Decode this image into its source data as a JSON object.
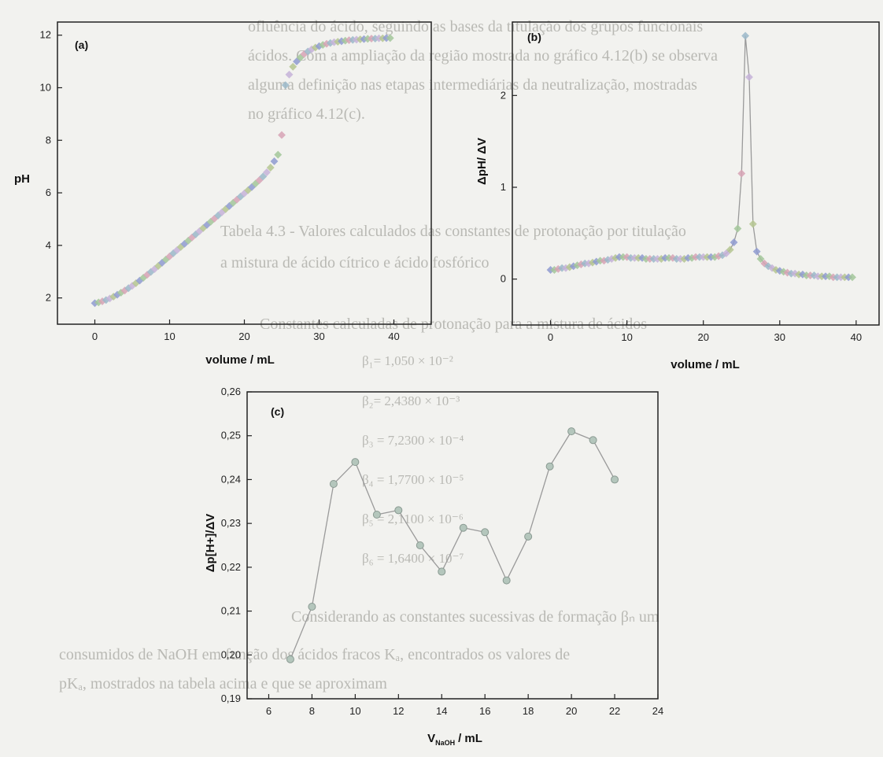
{
  "background_text": [
    "ofluência do ácido, seguindo as bases da titulação dos grupos funcionais",
    "ácidos. Com a ampliação da região mostrada no gráfico 4.12(b) se observa",
    "alguma definição nas etapas intermediárias da neutralização, mostradas",
    "no gráfico 4.12(c).",
    "Tabela 4.3 - Valores calculados das constantes de protonação por titulação",
    "a mistura de ácido cítrico e ácido fosfórico",
    "Constantes calculadas de protonação para a mistura de ácidos",
    "β₁= 1,050 × 10⁻²",
    "β₂= 2,4380 × 10⁻³",
    "β₃ = 7,2300 × 10⁻⁴",
    "β₄ = 1,7700 × 10⁻⁵",
    "β₅ = 2,1100 × 10⁻⁶",
    "β₆ = 1,6400 × 10⁻⁷",
    "Considerando as constantes sucessivas de formação βₙ um",
    "consumidos de NaOH em função dos ácidos fracos Kₐ, encontrados os valores de",
    "pKₐ, mostrados na tabela acima e que se aproximam"
  ],
  "chart_data": [
    {
      "id": "a",
      "type": "scatter",
      "panel_label": "(a)",
      "xlabel": "volume / mL",
      "ylabel": "pH",
      "xlim": [
        -5,
        45
      ],
      "ylim": [
        1,
        12.5
      ],
      "xticks": [
        "0",
        "10",
        "20",
        "30",
        "40"
      ],
      "yticks": [
        "2",
        "4",
        "6",
        "8",
        "10",
        "12"
      ],
      "x": [
        0,
        0.5,
        1,
        1.5,
        2,
        2.5,
        3,
        3.5,
        4,
        4.5,
        5,
        5.5,
        6,
        6.5,
        7,
        7.5,
        8,
        8.5,
        9,
        9.5,
        10,
        10.5,
        11,
        11.5,
        12,
        12.5,
        13,
        13.5,
        14,
        14.5,
        15,
        15.5,
        16,
        16.5,
        17,
        17.5,
        18,
        18.5,
        19,
        19.5,
        20,
        20.5,
        21,
        21.5,
        22,
        22.5,
        23,
        23.5,
        24,
        24.5,
        25,
        25.5,
        26,
        26.5,
        27,
        27.5,
        28,
        28.5,
        29,
        29.5,
        30,
        30.5,
        31,
        31.5,
        32,
        32.5,
        33,
        33.5,
        34,
        34.5,
        35,
        35.5,
        36,
        36.5,
        37,
        37.5,
        38,
        38.5,
        39,
        39.5
      ],
      "y": [
        1.8,
        1.83,
        1.87,
        1.92,
        1.98,
        2.05,
        2.12,
        2.2,
        2.28,
        2.37,
        2.46,
        2.56,
        2.66,
        2.77,
        2.88,
        2.99,
        3.1,
        3.22,
        3.34,
        3.46,
        3.58,
        3.7,
        3.82,
        3.94,
        4.06,
        4.18,
        4.3,
        4.42,
        4.54,
        4.66,
        4.78,
        4.9,
        5.02,
        5.14,
        5.26,
        5.38,
        5.5,
        5.62,
        5.74,
        5.86,
        5.98,
        6.1,
        6.22,
        6.35,
        6.48,
        6.62,
        6.78,
        6.96,
        7.2,
        7.45,
        8.2,
        10.1,
        10.5,
        10.8,
        11.0,
        11.15,
        11.28,
        11.38,
        11.46,
        11.53,
        11.58,
        11.63,
        11.67,
        11.7,
        11.73,
        11.75,
        11.77,
        11.79,
        11.81,
        11.82,
        11.83,
        11.84,
        11.85,
        11.86,
        11.87,
        11.87,
        11.88,
        11.88,
        11.89,
        11.89
      ]
    },
    {
      "id": "b",
      "type": "line",
      "panel_label": "(b)",
      "xlabel": "volume / mL",
      "ylabel": "ΔpH/ ΔV",
      "xlim": [
        -5,
        43
      ],
      "ylim": [
        -0.5,
        2.8
      ],
      "xticks": [
        "0",
        "10",
        "20",
        "30",
        "40"
      ],
      "yticks": [
        "0",
        "1",
        "2"
      ],
      "x": [
        0,
        0.5,
        1,
        1.5,
        2,
        2.5,
        3,
        3.5,
        4,
        4.5,
        5,
        5.5,
        6,
        6.5,
        7,
        7.5,
        8,
        8.5,
        9,
        9.5,
        10,
        10.5,
        11,
        11.5,
        12,
        12.5,
        13,
        13.5,
        14,
        14.5,
        15,
        15.5,
        16,
        16.5,
        17,
        17.5,
        18,
        18.5,
        19,
        19.5,
        20,
        20.5,
        21,
        21.5,
        22,
        22.5,
        23,
        23.5,
        24,
        24.5,
        25,
        25.5,
        26,
        26.5,
        27,
        27.5,
        28,
        28.5,
        29,
        29.5,
        30,
        30.5,
        31,
        31.5,
        32,
        32.5,
        33,
        33.5,
        34,
        34.5,
        35,
        35.5,
        36,
        36.5,
        37,
        37.5,
        38,
        38.5,
        39,
        39.5
      ],
      "y": [
        0.1,
        0.1,
        0.11,
        0.12,
        0.12,
        0.13,
        0.14,
        0.15,
        0.16,
        0.17,
        0.17,
        0.18,
        0.19,
        0.2,
        0.2,
        0.21,
        0.22,
        0.23,
        0.24,
        0.24,
        0.24,
        0.23,
        0.23,
        0.23,
        0.23,
        0.22,
        0.22,
        0.22,
        0.22,
        0.22,
        0.23,
        0.23,
        0.23,
        0.22,
        0.22,
        0.22,
        0.23,
        0.23,
        0.24,
        0.24,
        0.24,
        0.24,
        0.24,
        0.24,
        0.25,
        0.26,
        0.28,
        0.32,
        0.4,
        0.55,
        1.15,
        2.65,
        2.2,
        0.6,
        0.3,
        0.22,
        0.17,
        0.14,
        0.12,
        0.1,
        0.09,
        0.08,
        0.07,
        0.06,
        0.06,
        0.05,
        0.05,
        0.04,
        0.04,
        0.04,
        0.03,
        0.03,
        0.03,
        0.03,
        0.02,
        0.02,
        0.02,
        0.02,
        0.02,
        0.02
      ]
    },
    {
      "id": "c",
      "type": "line",
      "panel_label": "(c)",
      "xlabel": "V",
      "xlabel_sub": "NaOH",
      "xlabel_unit": "/ mL",
      "ylabel": "Δp[H+]/ΔV",
      "xlim": [
        5,
        24
      ],
      "ylim": [
        0.19,
        0.26
      ],
      "xticks": [
        "6",
        "8",
        "10",
        "12",
        "14",
        "16",
        "18",
        "20",
        "22",
        "24"
      ],
      "yticks": [
        "0,19",
        "0,20",
        "0,21",
        "0,22",
        "0,23",
        "0,24",
        "0,25",
        "0,26"
      ],
      "x": [
        7,
        8,
        9,
        10,
        11,
        12,
        13,
        14,
        15,
        16,
        17,
        18,
        19,
        20,
        21,
        22
      ],
      "y": [
        0.199,
        0.211,
        0.239,
        0.244,
        0.232,
        0.233,
        0.225,
        0.219,
        0.229,
        0.228,
        0.217,
        0.227,
        0.243,
        0.251,
        0.249,
        0.24
      ]
    }
  ]
}
